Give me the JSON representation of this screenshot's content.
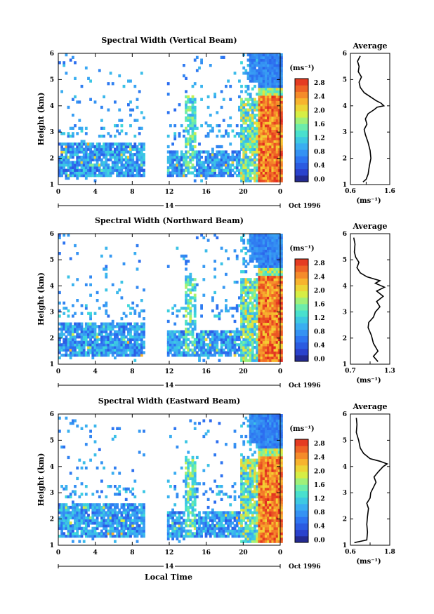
{
  "figure": {
    "xlabel": "Local Time",
    "date_label": "Oct 1996",
    "day_label": "14",
    "colorbar_unit": "(ms⁻¹)",
    "avg_unit": "(ms⁻¹)",
    "avg_title": "Average",
    "ylabel": "Height (km)"
  },
  "chart_data": [
    {
      "type": "heatmap",
      "title": "Spectral Width (Vertical Beam)",
      "xlabel": "Local Time",
      "ylabel": "Height (km)",
      "xlim": [
        0,
        24
      ],
      "ylim": [
        1,
        6
      ],
      "x_ticks": [
        "0",
        "4",
        "8",
        "12",
        "16",
        "20",
        "0"
      ],
      "y_ticks": [
        "1",
        "2",
        "3",
        "4",
        "5",
        "6"
      ],
      "gap_hours": [
        9.2,
        11.6
      ],
      "colorbar": {
        "label": "(ms⁻¹)",
        "ticks": [
          "0.0",
          "0.4",
          "0.8",
          "1.2",
          "1.6",
          "2.0",
          "2.4",
          "2.8"
        ],
        "range": [
          0,
          3.0
        ]
      },
      "average_profile": {
        "title": "Average",
        "xlabel": "(ms⁻¹)",
        "xlim": [
          0.6,
          1.6
        ],
        "x_ticks": [
          "0.6",
          "1.6"
        ],
        "x_tick_mid": "1.0",
        "ylim": [
          1,
          6
        ],
        "y_ticks": [
          "1",
          "2",
          "3",
          "4",
          "5",
          "6"
        ],
        "points": [
          [
            0.92,
            1.1
          ],
          [
            1.0,
            1.2
          ],
          [
            1.05,
            1.4
          ],
          [
            1.08,
            1.7
          ],
          [
            1.12,
            2.0
          ],
          [
            1.1,
            2.3
          ],
          [
            1.05,
            2.6
          ],
          [
            0.98,
            2.9
          ],
          [
            0.95,
            3.1
          ],
          [
            1.02,
            3.3
          ],
          [
            0.98,
            3.5
          ],
          [
            1.05,
            3.7
          ],
          [
            1.2,
            3.85
          ],
          [
            1.28,
            3.95
          ],
          [
            1.45,
            4.0
          ],
          [
            1.38,
            4.1
          ],
          [
            1.25,
            4.2
          ],
          [
            1.1,
            4.35
          ],
          [
            0.95,
            4.5
          ],
          [
            0.85,
            4.7
          ],
          [
            0.82,
            4.9
          ],
          [
            0.88,
            5.1
          ],
          [
            0.8,
            5.3
          ],
          [
            0.82,
            5.5
          ],
          [
            0.78,
            5.7
          ],
          [
            0.85,
            5.9
          ]
        ]
      }
    },
    {
      "type": "heatmap",
      "title": "Spectral Width (Northward Beam)",
      "xlabel": "Local Time",
      "ylabel": "Height (km)",
      "xlim": [
        0,
        24
      ],
      "ylim": [
        1,
        6
      ],
      "x_ticks": [
        "0",
        "4",
        "8",
        "12",
        "16",
        "20",
        "0"
      ],
      "y_ticks": [
        "1",
        "2",
        "3",
        "4",
        "5",
        "6"
      ],
      "gap_hours": [
        9.2,
        11.6
      ],
      "colorbar": {
        "label": "(ms⁻¹)",
        "ticks": [
          "0.0",
          "0.4",
          "0.8",
          "1.2",
          "1.6",
          "2.0",
          "2.4",
          "2.8"
        ],
        "range": [
          0,
          3.0
        ]
      },
      "average_profile": {
        "title": "Average",
        "xlabel": "(ms⁻¹)",
        "xlim": [
          0.7,
          1.3
        ],
        "x_ticks": [
          "0.7",
          "1.3"
        ],
        "x_tick_mid": "1.0",
        "ylim": [
          1,
          6
        ],
        "y_ticks": [
          "1",
          "2",
          "3",
          "4",
          "5",
          "6"
        ],
        "points": [
          [
            1.12,
            1.1
          ],
          [
            1.05,
            1.3
          ],
          [
            1.12,
            1.5
          ],
          [
            1.05,
            1.8
          ],
          [
            1.02,
            2.1
          ],
          [
            0.97,
            2.4
          ],
          [
            0.98,
            2.6
          ],
          [
            1.05,
            2.8
          ],
          [
            1.08,
            3.0
          ],
          [
            1.15,
            3.2
          ],
          [
            1.1,
            3.4
          ],
          [
            1.2,
            3.6
          ],
          [
            1.1,
            3.8
          ],
          [
            1.22,
            3.95
          ],
          [
            1.08,
            4.1
          ],
          [
            1.15,
            4.2
          ],
          [
            0.95,
            4.35
          ],
          [
            0.85,
            4.5
          ],
          [
            0.8,
            4.7
          ],
          [
            0.83,
            4.9
          ],
          [
            0.78,
            5.1
          ],
          [
            0.76,
            5.3
          ],
          [
            0.77,
            5.6
          ],
          [
            0.75,
            5.85
          ]
        ]
      }
    },
    {
      "type": "heatmap",
      "title": "Spectral Width (Eastward Beam)",
      "xlabel": "Local Time",
      "ylabel": "Height (km)",
      "xlim": [
        0,
        24
      ],
      "ylim": [
        1,
        6
      ],
      "x_ticks": [
        "0",
        "4",
        "8",
        "12",
        "16",
        "20",
        "0"
      ],
      "y_ticks": [
        "1",
        "2",
        "3",
        "4",
        "5",
        "6"
      ],
      "gap_hours": [
        9.2,
        11.6
      ],
      "colorbar": {
        "label": "(ms⁻¹)",
        "ticks": [
          "0.0",
          "0.4",
          "0.8",
          "1.2",
          "1.6",
          "2.0",
          "2.4",
          "2.8"
        ],
        "range": [
          0,
          3.0
        ]
      },
      "average_profile": {
        "title": "Average",
        "xlabel": "(ms⁻¹)",
        "xlim": [
          0.6,
          1.8
        ],
        "x_ticks": [
          "0.6",
          "1.8"
        ],
        "x_tick_mid": "1.2",
        "ylim": [
          1,
          6
        ],
        "y_ticks": [
          "1",
          "2",
          "3",
          "4",
          "5",
          "6"
        ],
        "points": [
          [
            0.72,
            1.1
          ],
          [
            1.1,
            1.2
          ],
          [
            1.12,
            1.5
          ],
          [
            1.1,
            1.8
          ],
          [
            1.12,
            2.1
          ],
          [
            1.15,
            2.4
          ],
          [
            1.1,
            2.6
          ],
          [
            1.2,
            2.8
          ],
          [
            1.22,
            3.0
          ],
          [
            1.3,
            3.2
          ],
          [
            1.38,
            3.4
          ],
          [
            1.32,
            3.6
          ],
          [
            1.45,
            3.8
          ],
          [
            1.6,
            4.0
          ],
          [
            1.72,
            4.1
          ],
          [
            1.5,
            4.2
          ],
          [
            1.2,
            4.3
          ],
          [
            1.0,
            4.5
          ],
          [
            0.9,
            4.7
          ],
          [
            0.85,
            5.0
          ],
          [
            0.78,
            5.3
          ],
          [
            0.8,
            5.6
          ],
          [
            0.78,
            5.85
          ]
        ]
      }
    }
  ]
}
